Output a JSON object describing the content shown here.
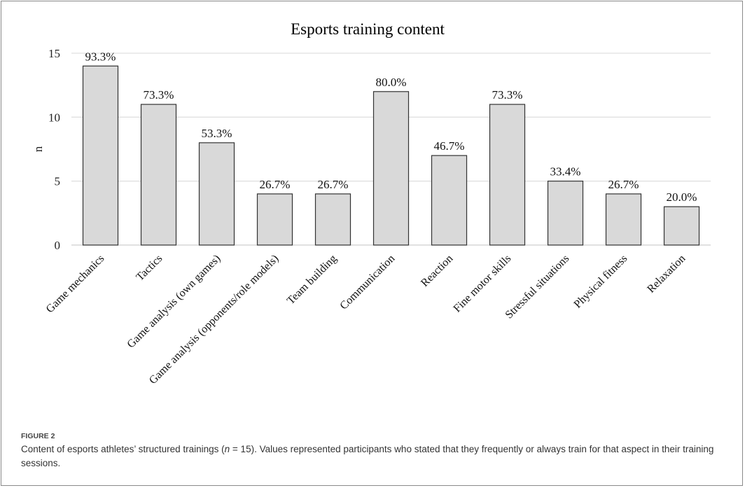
{
  "chart_data": {
    "type": "bar",
    "title": "Esports training content",
    "xlabel": "",
    "ylabel": "n",
    "ylim": [
      0,
      15
    ],
    "yticks": [
      0,
      5,
      10,
      15
    ],
    "grid": true,
    "categories": [
      "Game mechanics",
      "Tactics",
      "Game analysis (own games)",
      "Game analysis (opponents/role models)",
      "Team building",
      "Communication",
      "Reaction",
      "Fine motor skills",
      "Stressful situations",
      "Physical fitness",
      "Relaxation"
    ],
    "values": [
      14,
      11,
      8,
      4,
      4,
      12,
      7,
      11,
      5,
      4,
      3
    ],
    "data_labels": [
      "93.3%",
      "73.3%",
      "53.3%",
      "26.7%",
      "26.7%",
      "80.0%",
      "46.7%",
      "73.3%",
      "33.4%",
      "26.7%",
      "20.0%"
    ],
    "bar_color": "#d9d9d9",
    "bar_edge": "#333333"
  },
  "caption": {
    "figure_label": "FIGURE 2",
    "text_before_n": "Content of esports athletes’ structured trainings (",
    "n_symbol": "n",
    "text_after_n": " = 15). Values represented participants who stated that they frequently or always train for that aspect in their training sessions."
  }
}
